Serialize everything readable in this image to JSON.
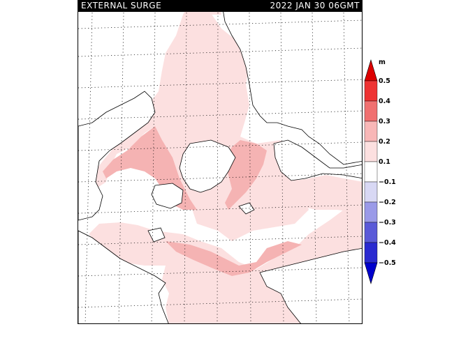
{
  "title": {
    "left": "EXTERNAL SURGE",
    "right": "2022 JAN 30 06GMT"
  },
  "legend": {
    "unit": "m",
    "labels": [
      "0.5",
      "0.4",
      "0.3",
      "0.2",
      "0.1",
      "−0.1",
      "−0.2",
      "−0.3",
      "−0.4",
      "−0.5"
    ],
    "colors": {
      "c05": "#dd0000",
      "c04": "#ee3333",
      "c03": "#f07070",
      "c02": "#f8b7b7",
      "c01": "#fce0e0",
      "c00": "#ffffff",
      "cm01": "#d8d8f4",
      "cm02": "#9a9ae8",
      "cm03": "#5a5ad8",
      "cm04": "#2a2ad0",
      "cm05": "#0000cc"
    }
  },
  "map_colors": {
    "light_surge": "#fce0e0",
    "medium_surge": "#f5b3b3",
    "strong_surge": "#ee8888",
    "land": "#ffffff",
    "coast": "#000000"
  }
}
